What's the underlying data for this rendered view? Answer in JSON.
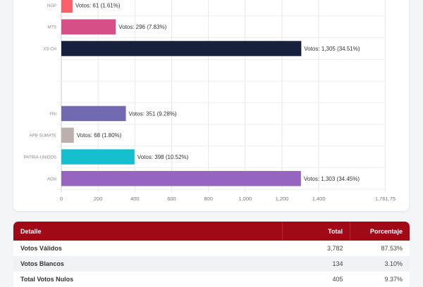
{
  "chart_data": {
    "type": "bar",
    "orientation": "horizontal",
    "title": "",
    "xlabel": "",
    "ylabel": "",
    "xlim": [
      0,
      1761.75
    ],
    "grid": true,
    "x_ticks": [
      "0",
      "200",
      "400",
      "600",
      "800",
      "1,000",
      "1,200",
      "1,400",
      "1,761.75"
    ],
    "x_tick_values": [
      0,
      200,
      400,
      600,
      800,
      1000,
      1200,
      1400,
      1761.75
    ],
    "categories": [
      "NGP",
      "MTS",
      "XS-CH",
      "",
      "",
      "FRI",
      "APB-SUMATE",
      "PATRIA-UNIDOS",
      "AGN"
    ],
    "values": [
      61,
      296,
      1305,
      null,
      null,
      351,
      68,
      398,
      1303
    ],
    "data_labels": [
      "Votos: 61 (1.61%)",
      "Votos: 296 (7.83%)",
      "Votos: 1,305 (34.51%)",
      "",
      "",
      "Votos: 351 (9.28%)",
      "Votos: 68 (1.80%)",
      "Votos: 398 (10.52%)",
      "Votos: 1,303 (34.45%)"
    ],
    "colors": [
      "#f9606a",
      "#d64f87",
      "#17213d",
      "",
      "",
      "#716ab1",
      "#bbb0ab",
      "#16bfcf",
      "#9565bf"
    ]
  },
  "table": {
    "headers": {
      "detail": "Detalle",
      "total": "Total",
      "percent": "Porcentaje"
    },
    "rows": [
      {
        "detail": "Votos Válidos",
        "total": "3,782",
        "percent": "87.53%"
      },
      {
        "detail": "Votos Blancos",
        "total": "134",
        "percent": "3.10%"
      },
      {
        "detail": "Total Votos Nulos",
        "total": "405",
        "percent": "9.37%"
      }
    ],
    "header_color": "#a00a16"
  }
}
